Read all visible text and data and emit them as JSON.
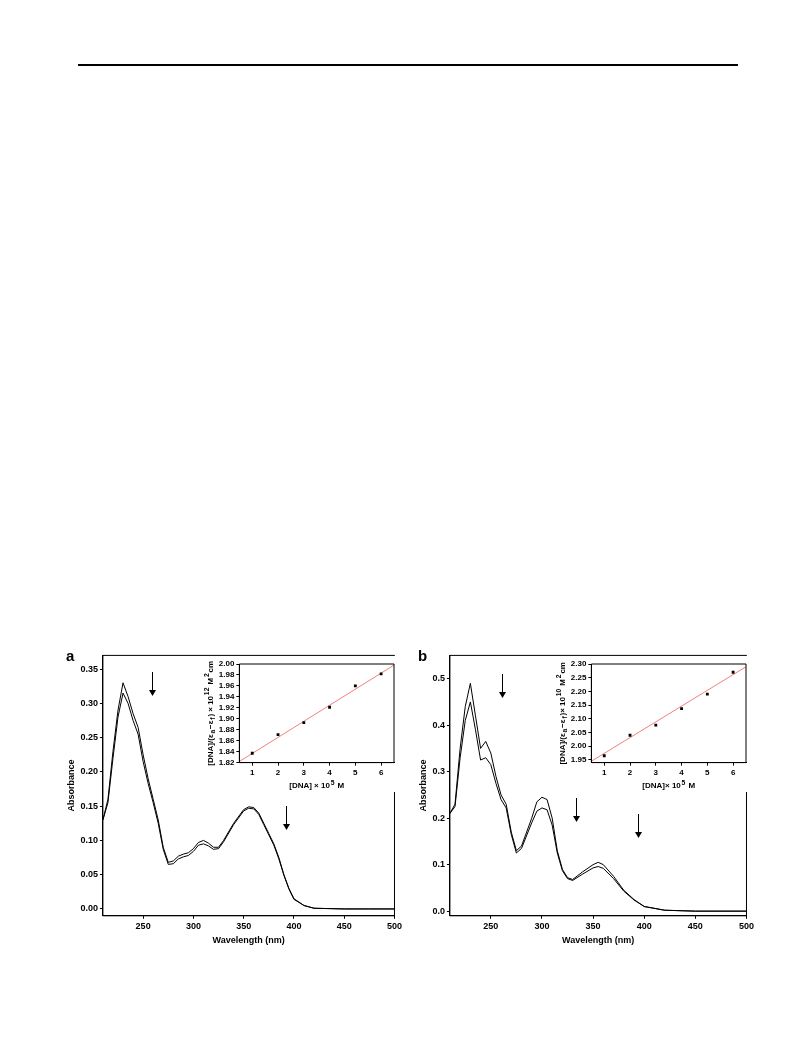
{
  "chart_data": [
    {
      "type": "line",
      "title": "a",
      "xlabel": "Wavelength (nm)",
      "ylabel": "Absorbance",
      "xlim": [
        210,
        500
      ],
      "xticks": [
        250,
        300,
        350,
        400,
        450,
        500
      ],
      "ylim": [
        -0.01,
        0.37
      ],
      "yticks": [
        {
          "value": 0,
          "label": "0.00"
        },
        0.05,
        {
          "value": 0.1,
          "label": "0.10"
        },
        0.15,
        {
          "value": 0.2,
          "label": "0.20"
        },
        0.25,
        {
          "value": 0.3,
          "label": "0.30"
        },
        0.35
      ],
      "x": [
        210,
        215,
        220,
        225,
        230,
        235,
        240,
        245,
        250,
        255,
        260,
        265,
        270,
        275,
        280,
        285,
        290,
        295,
        300,
        305,
        310,
        315,
        320,
        325,
        330,
        340,
        350,
        355,
        360,
        365,
        370,
        375,
        380,
        385,
        390,
        395,
        400,
        410,
        420,
        450,
        475,
        500
      ],
      "series": [
        {
          "color": "#000000",
          "values": [
            0.13,
            0.16,
            0.23,
            0.29,
            0.33,
            0.31,
            0.285,
            0.265,
            0.225,
            0.19,
            0.16,
            0.13,
            0.09,
            0.068,
            0.07,
            0.077,
            0.08,
            0.082,
            0.088,
            0.097,
            0.1,
            0.096,
            0.09,
            0.09,
            0.1,
            0.125,
            0.145,
            0.149,
            0.148,
            0.14,
            0.125,
            0.11,
            0.095,
            0.075,
            0.05,
            0.03,
            0.015,
            0.005,
            0.001,
            0,
            0,
            0
          ]
        },
        {
          "color": "#000000",
          "values": [
            0.13,
            0.155,
            0.22,
            0.28,
            0.315,
            0.3,
            0.275,
            0.255,
            0.215,
            0.183,
            0.155,
            0.125,
            0.087,
            0.065,
            0.066,
            0.073,
            0.076,
            0.078,
            0.084,
            0.093,
            0.095,
            0.092,
            0.087,
            0.088,
            0.098,
            0.123,
            0.143,
            0.147,
            0.146,
            0.138,
            0.123,
            0.108,
            0.093,
            0.073,
            0.049,
            0.029,
            0.014,
            0.005,
            0.001,
            0,
            0,
            0
          ]
        }
      ]
    },
    {
      "type": "scatter",
      "xlabel": "[DNA] × 10$^{5}$ M",
      "ylabel": "[DNA]/(ε$_{a}$−ε$_{f}$) × 10$^{12}$ M$^{2}$cm",
      "xlim": [
        0.5,
        6.5
      ],
      "xticks": [
        1,
        2,
        3,
        4,
        5,
        6
      ],
      "ylim": [
        1.82,
        2.0
      ],
      "yticks": [
        1.82,
        1.84,
        1.86,
        1.88,
        {
          "value": 1.9,
          "label": "1.90"
        },
        1.92,
        1.94,
        1.96,
        1.98,
        {
          "value": 2.0,
          "label": "2.00"
        }
      ],
      "series": [
        {
          "color": "#000000",
          "marker": "square",
          "x": [
            1,
            2,
            3,
            4,
            5,
            6
          ],
          "values": [
            1.837,
            1.871,
            1.893,
            1.921,
            1.96,
            1.982
          ]
        },
        {
          "type": "line",
          "color": "#f08080",
          "x": [
            0.5,
            6.5
          ],
          "values": [
            1.822,
            1.998
          ]
        }
      ]
    },
    {
      "type": "line",
      "title": "b",
      "xlabel": "Wavelength (nm)",
      "ylabel": "Absorbance",
      "xlim": [
        210,
        500
      ],
      "xticks": [
        250,
        300,
        350,
        400,
        450,
        500
      ],
      "ylim": [
        -0.01,
        0.55
      ],
      "yticks": [
        {
          "value": 0,
          "label": "0.0"
        },
        0.1,
        0.2,
        0.3,
        0.4,
        0.5
      ],
      "x": [
        210,
        215,
        220,
        225,
        230,
        235,
        240,
        245,
        250,
        255,
        260,
        265,
        270,
        275,
        280,
        290,
        295,
        300,
        305,
        310,
        315,
        320,
        325,
        330,
        340,
        350,
        355,
        360,
        370,
        380,
        390,
        400,
        420,
        450,
        500
      ],
      "series": [
        {
          "color": "#000000",
          "values": [
            0.21,
            0.23,
            0.35,
            0.44,
            0.49,
            0.42,
            0.35,
            0.365,
            0.34,
            0.29,
            0.25,
            0.23,
            0.17,
            0.13,
            0.14,
            0.2,
            0.235,
            0.245,
            0.24,
            0.2,
            0.13,
            0.09,
            0.072,
            0.068,
            0.085,
            0.1,
            0.105,
            0.1,
            0.075,
            0.045,
            0.025,
            0.01,
            0.002,
            0,
            0
          ]
        },
        {
          "color": "#000000",
          "values": [
            0.21,
            0.225,
            0.33,
            0.41,
            0.45,
            0.39,
            0.325,
            0.33,
            0.315,
            0.275,
            0.24,
            0.222,
            0.165,
            0.125,
            0.135,
            0.19,
            0.215,
            0.222,
            0.218,
            0.185,
            0.125,
            0.087,
            0.07,
            0.066,
            0.08,
            0.093,
            0.096,
            0.092,
            0.07,
            0.043,
            0.024,
            0.01,
            0.002,
            0,
            0
          ]
        }
      ]
    },
    {
      "type": "scatter",
      "xlabel": "[DNA]× 10$^{5}$ M",
      "ylabel": "[DNA]/(ε$_{a}$−ε$_{f}$)× 10$^{10}$ M$^{2}$cm",
      "xlim": [
        0.5,
        6.5
      ],
      "xticks": [
        1,
        2,
        3,
        4,
        5,
        6
      ],
      "ylim": [
        1.94,
        2.3
      ],
      "yticks": [
        1.95,
        {
          "value": 2.0,
          "label": "2.00"
        },
        2.05,
        {
          "value": 2.1,
          "label": "2.10"
        },
        2.15,
        {
          "value": 2.2,
          "label": "2.20"
        },
        2.25,
        {
          "value": 2.3,
          "label": "2.30"
        }
      ],
      "series": [
        {
          "color": "#000000",
          "marker": "square",
          "x": [
            1,
            2,
            3,
            4,
            5,
            6
          ],
          "values": [
            1.965,
            2.04,
            2.077,
            2.137,
            2.19,
            2.27
          ]
        },
        {
          "type": "line",
          "color": "#f08080",
          "x": [
            0.5,
            6.5
          ],
          "values": [
            1.945,
            2.29
          ]
        }
      ]
    }
  ]
}
